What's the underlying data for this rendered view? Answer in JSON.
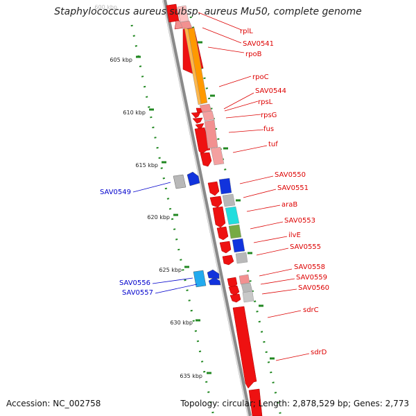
{
  "title": "Staphylococcus aureus subsp. aureus Mu50, complete genome",
  "footer": {
    "accession": "Accession: NC_002758",
    "topology": "Topology: circular; Length: 2,878,529 bp; Genes: 2,773"
  },
  "scale": {
    "unit": "kbp",
    "ticks": [
      {
        "kbp": 600,
        "label": "600 kbp"
      },
      {
        "kbp": 605,
        "label": "605 kbp"
      },
      {
        "kbp": 610,
        "label": "610 kbp"
      },
      {
        "kbp": 615,
        "label": "615 kbp"
      },
      {
        "kbp": 620,
        "label": "620 kbp"
      },
      {
        "kbp": 625,
        "label": "625 kbp"
      },
      {
        "kbp": 630,
        "label": "630 kbp"
      },
      {
        "kbp": 635,
        "label": "635 kbp"
      }
    ]
  },
  "colors": {
    "forward_gene": "#ee1111",
    "reverse_gene": "#1133dd",
    "rna_polymerase": "#ff9900",
    "ribosomal": "#f29090",
    "unknown": "#b8b8b8",
    "transport": "#22dddd",
    "label_forward": "#dd0000",
    "label_reverse": "#0000cc",
    "backbone": "#888888",
    "scale_ticks": "#228822"
  },
  "genes_forward": [
    {
      "label": "rplL",
      "color": "#f29090"
    },
    {
      "label": "SAV0541",
      "color": "#f29090"
    },
    {
      "label": "rpoB",
      "color": "#ff9900"
    },
    {
      "label": "rpoC",
      "color": "#ff9900"
    },
    {
      "label": "SAV0544",
      "color": "#f29090"
    },
    {
      "label": "rpsL",
      "color": "#f29090"
    },
    {
      "label": "rpsG",
      "color": "#f29090"
    },
    {
      "label": "fus",
      "color": "#f29090"
    },
    {
      "label": "tuf",
      "color": "#f29090"
    },
    {
      "label": "SAV0550",
      "color": "#1133dd"
    },
    {
      "label": "SAV0551",
      "color": "#b8b8b8"
    },
    {
      "label": "araB",
      "color": "#b8b8b8"
    },
    {
      "label": "SAV0553",
      "color": "#22dddd"
    },
    {
      "label": "ilvE",
      "color": "#999944"
    },
    {
      "label": "SAV0555",
      "color": "#1133dd"
    },
    {
      "label": "SAV0558",
      "color": "#b8b8b8"
    },
    {
      "label": "SAV0559",
      "color": "#b8b8b8"
    },
    {
      "label": "SAV0560",
      "color": "#b8b8b8"
    },
    {
      "label": "sdrC",
      "color": "#ee1111"
    },
    {
      "label": "sdrD",
      "color": "#ee1111"
    }
  ],
  "genes_reverse": [
    {
      "label": "SAV0549",
      "color": "#1133dd"
    },
    {
      "label": "SAV0556",
      "color": "#22aaee"
    },
    {
      "label": "SAV0557",
      "color": "#1133dd"
    }
  ]
}
